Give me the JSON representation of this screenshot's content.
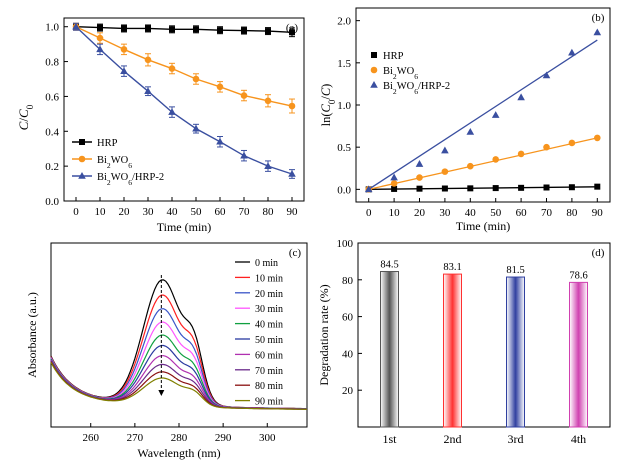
{
  "chart_data": [
    {
      "panel": "(a)",
      "type": "line",
      "xlabel": "Time (min)",
      "ylabel_main": "C/C",
      "ylabel_sub": "0",
      "xlim": [
        -5,
        95
      ],
      "ylim": [
        0.0,
        1.05
      ],
      "xticks": [
        0,
        10,
        20,
        30,
        40,
        50,
        60,
        70,
        80,
        90
      ],
      "yticks": [
        "0.0",
        "0.2",
        "0.4",
        "0.6",
        "0.8",
        "1.0"
      ],
      "x": [
        0,
        10,
        20,
        30,
        40,
        50,
        60,
        70,
        80,
        90
      ],
      "legend_position": "bottom-left",
      "series": [
        {
          "name_main": "HRP",
          "name_sub": "",
          "name_tail": "",
          "color": "#000000",
          "marker": "square",
          "values": [
            1.0,
            0.995,
            0.99,
            0.99,
            0.985,
            0.985,
            0.98,
            0.978,
            0.975,
            0.968
          ],
          "errors": [
            0.015,
            0.02,
            0.02,
            0.02,
            0.02,
            0.02,
            0.02,
            0.02,
            0.02,
            0.025
          ]
        },
        {
          "name_main": "Bi",
          "name_sub": "2",
          "name_tail": "WO",
          "name_sub2": "6",
          "name_rest": "",
          "color": "#f7941d",
          "marker": "circle",
          "values": [
            1.0,
            0.935,
            0.87,
            0.81,
            0.76,
            0.7,
            0.655,
            0.605,
            0.575,
            0.545
          ],
          "errors": [
            0.02,
            0.03,
            0.03,
            0.035,
            0.03,
            0.03,
            0.03,
            0.03,
            0.035,
            0.04
          ]
        },
        {
          "name_main": "Bi",
          "name_sub": "2",
          "name_tail": "WO",
          "name_sub2": "6",
          "name_rest": "/HRP-2",
          "color": "#3a4fa0",
          "marker": "triangle",
          "values": [
            1.0,
            0.87,
            0.745,
            0.63,
            0.51,
            0.415,
            0.34,
            0.26,
            0.2,
            0.155
          ],
          "errors": [
            0.02,
            0.03,
            0.03,
            0.025,
            0.03,
            0.025,
            0.03,
            0.03,
            0.03,
            0.025
          ]
        }
      ]
    },
    {
      "panel": "(b)",
      "type": "scatter",
      "xlabel": "Time (min)",
      "ylabel_main": "ln(C",
      "ylabel_sub": "0",
      "ylabel_tail": "/C)",
      "xlim": [
        -5,
        95
      ],
      "ylim": [
        -0.15,
        2.15
      ],
      "xticks": [
        0,
        10,
        20,
        30,
        40,
        50,
        60,
        70,
        80,
        90
      ],
      "yticks": [
        "0.0",
        "0.5",
        "1.0",
        "1.5",
        "2.0"
      ],
      "x": [
        0,
        10,
        20,
        30,
        40,
        50,
        60,
        70,
        80,
        90
      ],
      "legend_position": "top-left",
      "series": [
        {
          "name_main": "HRP",
          "name_sub": "",
          "name_tail": "",
          "name_sub2": "",
          "name_rest": "",
          "color": "#000000",
          "marker": "square",
          "values": [
            0.0,
            0.005,
            0.008,
            0.01,
            0.012,
            0.015,
            0.018,
            0.022,
            0.025,
            0.032
          ],
          "fit": [
            0.0,
            0.03
          ]
        },
        {
          "name_main": "Bi",
          "name_sub": "2",
          "name_tail": "WO",
          "name_sub2": "6",
          "name_rest": "",
          "color": "#f7941d",
          "marker": "circle",
          "values": [
            0.0,
            0.07,
            0.14,
            0.21,
            0.275,
            0.355,
            0.42,
            0.5,
            0.55,
            0.61
          ],
          "fit": [
            0.0,
            0.61
          ]
        },
        {
          "name_main": "Bi",
          "name_sub": "2",
          "name_tail": "WO",
          "name_sub2": "6",
          "name_rest": "/HRP-2",
          "color": "#3a4fa0",
          "marker": "triangle",
          "values": [
            0.0,
            0.14,
            0.3,
            0.46,
            0.68,
            0.88,
            1.09,
            1.35,
            1.62,
            1.86
          ],
          "fit": [
            0.0,
            1.77
          ]
        }
      ]
    },
    {
      "panel": "(c)",
      "type": "line",
      "xlabel": "Wavelength (nm)",
      "ylabel": "Absorbance (a.u.)",
      "xlim": [
        251,
        309
      ],
      "xticks": [
        260,
        270,
        280,
        290,
        300
      ],
      "peak_nm": 276,
      "legend_position": "top-right",
      "series": [
        {
          "name": "0 min",
          "color": "#000000",
          "amplitude": 1.0
        },
        {
          "name": "10 min",
          "color": "#ff2020",
          "amplitude": 0.89
        },
        {
          "name": "20 min",
          "color": "#3a55c8",
          "amplitude": 0.79
        },
        {
          "name": "30 min",
          "color": "#ff55ff",
          "amplitude": 0.69
        },
        {
          "name": "40 min",
          "color": "#10a040",
          "amplitude": 0.59
        },
        {
          "name": "50 min",
          "color": "#2a3aa0",
          "amplitude": 0.51
        },
        {
          "name": "60 min",
          "color": "#b030b0",
          "amplitude": 0.43
        },
        {
          "name": "70 min",
          "color": "#6a2a8a",
          "amplitude": 0.36
        },
        {
          "name": "80 min",
          "color": "#8a1010",
          "amplitude": 0.3
        },
        {
          "name": "90 min",
          "color": "#808000",
          "amplitude": 0.25
        }
      ]
    },
    {
      "panel": "(d)",
      "type": "bar",
      "ylabel": "Degradation rate (%)",
      "ylim": [
        0,
        100
      ],
      "yticks": [
        "20",
        "40",
        "60",
        "80",
        "100"
      ],
      "categories": [
        "1st",
        "2nd",
        "3rd",
        "4th"
      ],
      "values": [
        84.5,
        83.1,
        81.5,
        78.6
      ],
      "labels": [
        "84.5",
        "83.1",
        "81.5",
        "78.6"
      ],
      "colors": [
        "#555555",
        "#ff3030",
        "#3040a0",
        "#d040b0"
      ]
    }
  ]
}
